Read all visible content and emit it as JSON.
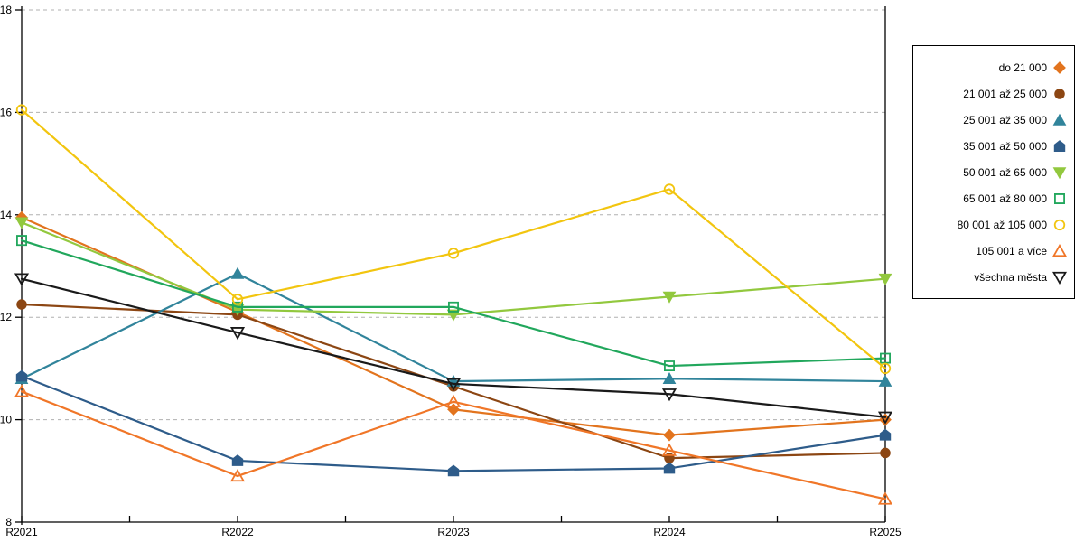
{
  "chart_data": {
    "type": "line",
    "categories": [
      "R2021",
      "R2022",
      "R2023",
      "R2024",
      "R2025"
    ],
    "xlabel": "",
    "ylabel": "",
    "title": "",
    "ylim": [
      8,
      18
    ],
    "yticks": [
      8,
      10,
      12,
      14,
      16,
      18
    ],
    "grid": "horizontal-dashed",
    "legend_position": "right",
    "grid_color": "#b0b0b0",
    "axis_color": "#000000",
    "series": [
      {
        "name": "do 21 000",
        "color": "#E2741E",
        "marker": "diamond",
        "marker_fill": "filled",
        "values": [
          13.95,
          12.1,
          10.2,
          9.7,
          10.0
        ]
      },
      {
        "name": "21 001 až 25 000",
        "color": "#8C4613",
        "marker": "circle",
        "marker_fill": "filled",
        "values": [
          12.25,
          12.05,
          10.65,
          9.25,
          9.35
        ]
      },
      {
        "name": "25 001 až 35 000",
        "color": "#31849B",
        "marker": "triangle-up",
        "marker_fill": "filled",
        "values": [
          10.8,
          12.85,
          10.75,
          10.8,
          10.75
        ]
      },
      {
        "name": "35 001 až 50 000",
        "color": "#2E5C8A",
        "marker": "pentagon",
        "marker_fill": "filled",
        "values": [
          10.85,
          9.2,
          9.0,
          9.05,
          9.7
        ]
      },
      {
        "name": "50 001 až 65 000",
        "color": "#92C83E",
        "marker": "triangle-down",
        "marker_fill": "filled",
        "values": [
          13.85,
          12.15,
          12.05,
          12.4,
          12.75
        ]
      },
      {
        "name": "65 001 až 80 000",
        "color": "#21A75C",
        "marker": "square",
        "marker_fill": "open",
        "values": [
          13.5,
          12.2,
          12.2,
          11.05,
          11.2
        ]
      },
      {
        "name": "80 001 až 105 000",
        "color": "#F2C50F",
        "marker": "circle",
        "marker_fill": "open",
        "values": [
          16.05,
          12.35,
          13.25,
          14.5,
          11.0
        ]
      },
      {
        "name": "105 001 a více",
        "color": "#F07628",
        "marker": "triangle-up",
        "marker_fill": "open",
        "values": [
          10.55,
          8.9,
          10.35,
          9.4,
          8.45
        ]
      },
      {
        "name": "všechna města",
        "color": "#1A1A1A",
        "marker": "triangle-down",
        "marker_fill": "open",
        "values": [
          12.75,
          11.7,
          10.7,
          10.5,
          10.05
        ]
      }
    ]
  }
}
